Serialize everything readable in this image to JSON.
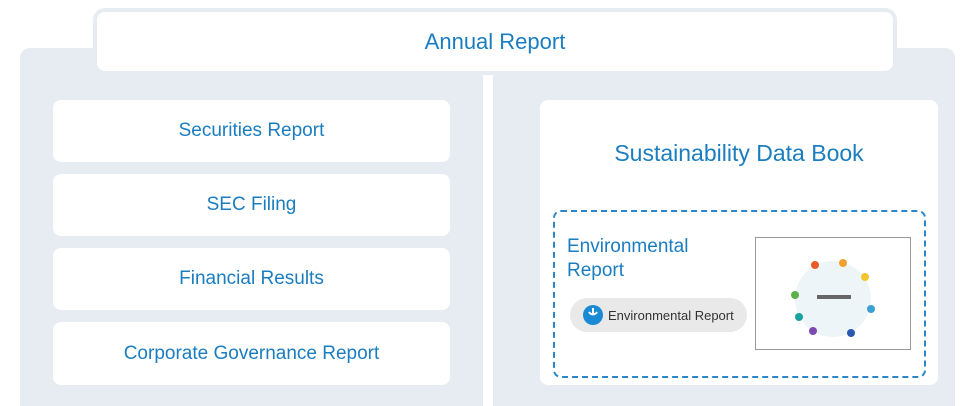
{
  "header": {
    "title": "Annual Report"
  },
  "left_items": [
    "Securities Report",
    "SEC Filing",
    "Financial Results",
    "Corporate Governance Report"
  ],
  "right": {
    "title": "Sustainability Data Book",
    "feature": {
      "title": "Environmental Report",
      "button": "Environmental Report"
    }
  }
}
